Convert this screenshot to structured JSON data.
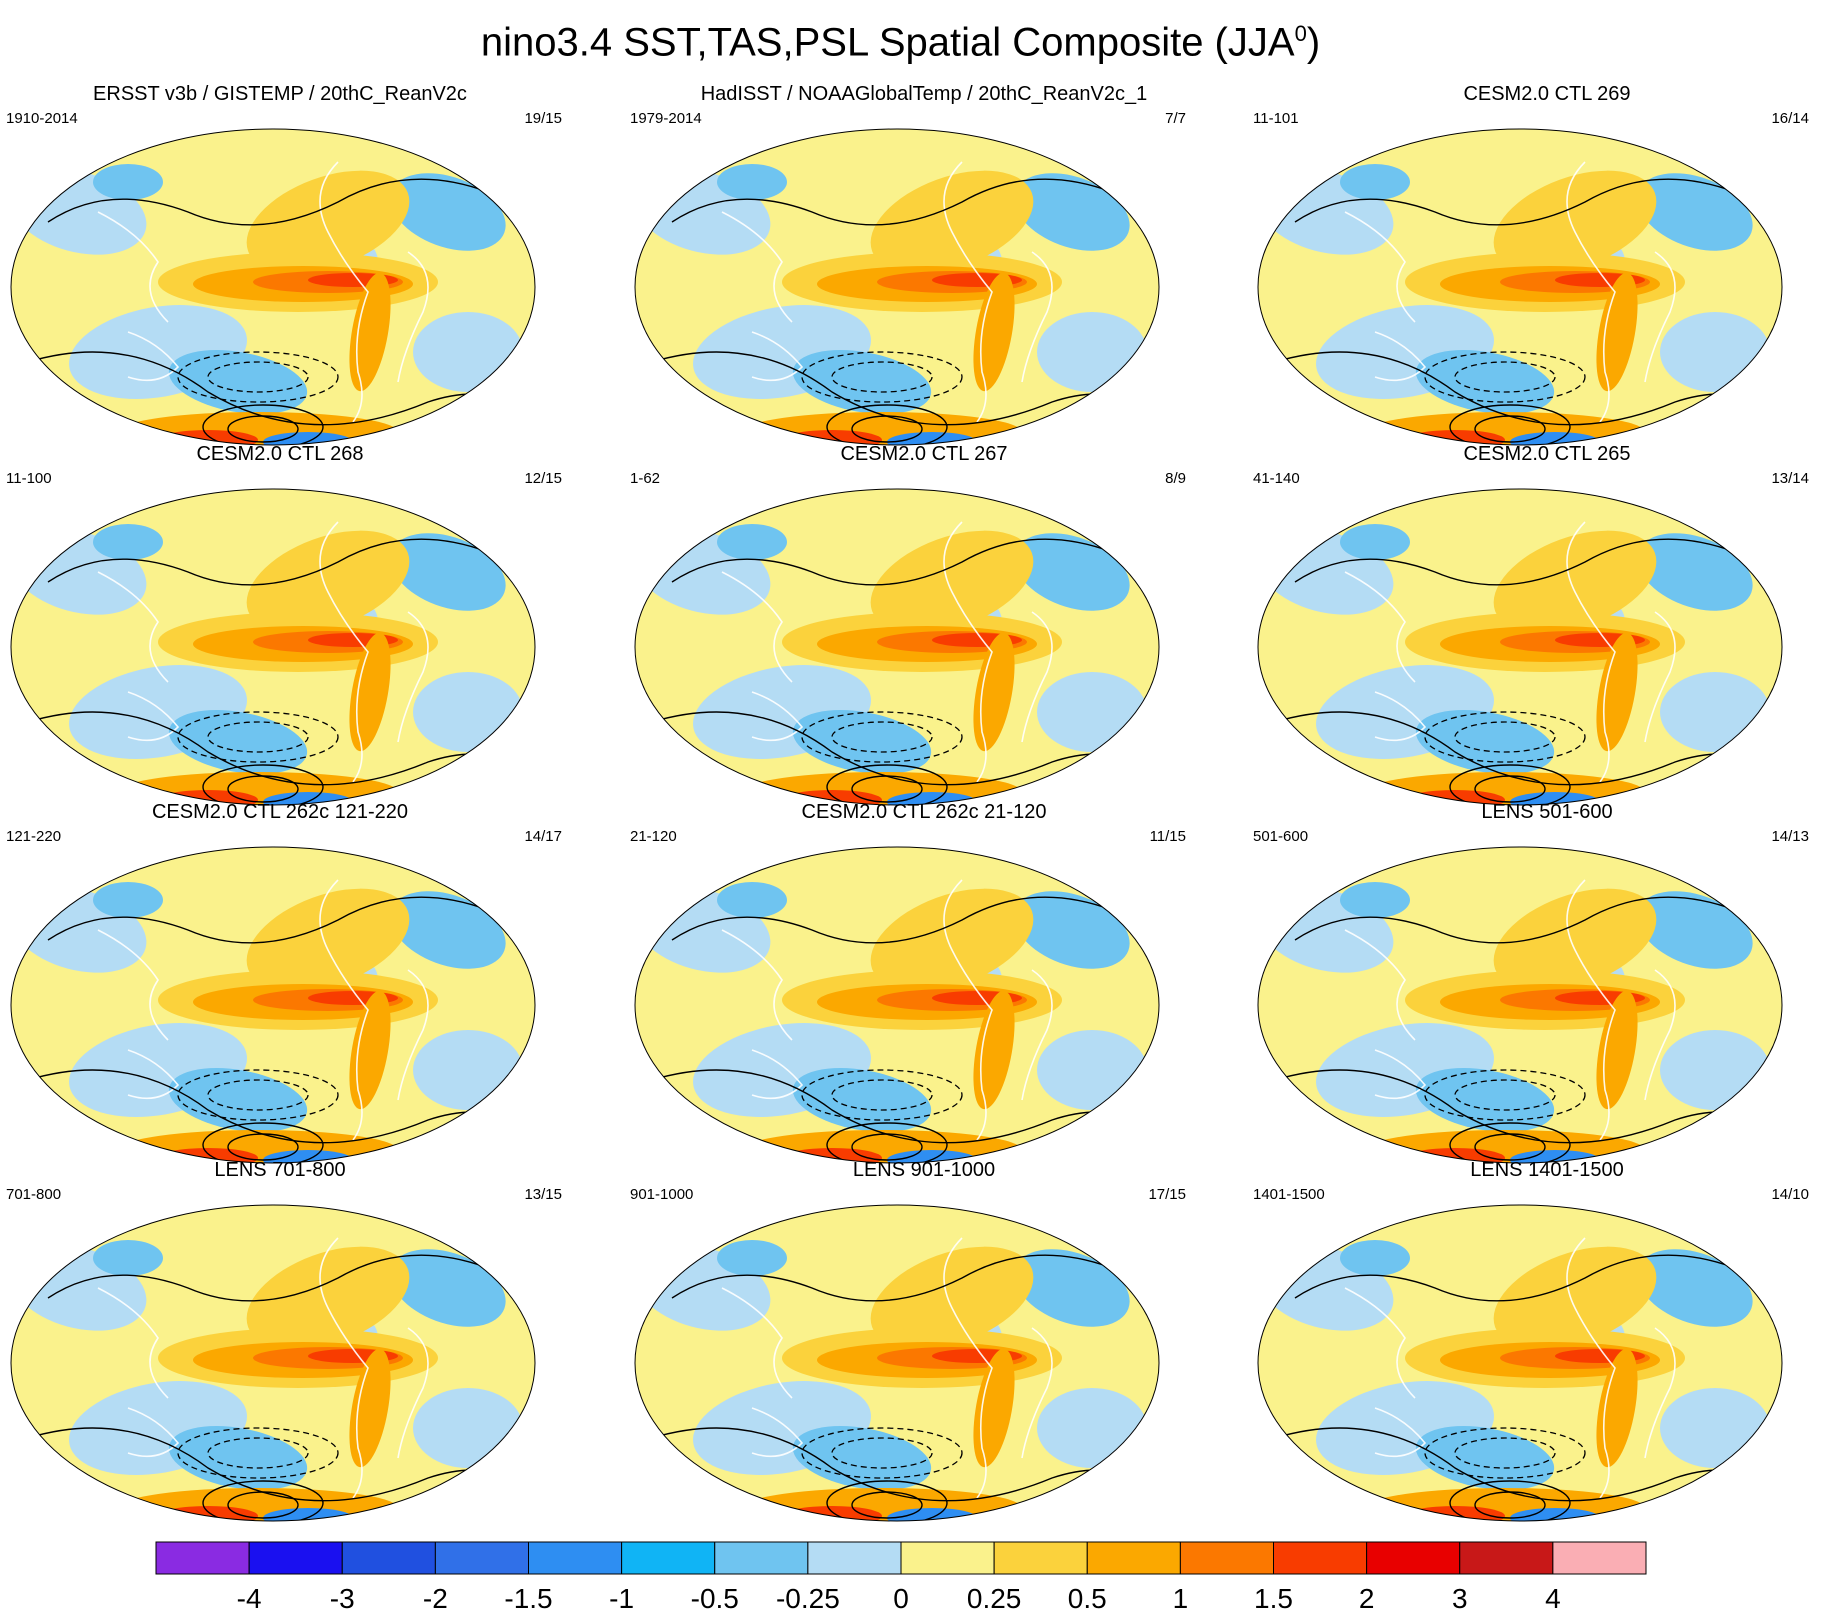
{
  "title": {
    "main": "nino3.4 SST,TAS,PSL Spatial Composite (JJA",
    "superscript": "0",
    "close": ")"
  },
  "chart_data": {
    "type": "map-composite-panels",
    "variables": [
      "SST",
      "TAS",
      "PSL"
    ],
    "index": "nino3.4",
    "season": "JJA0",
    "panels": [
      {
        "title": "ERSST v3b / GISTEMP / 20thC_ReanV2c",
        "years": "1910-2014",
        "count": "19/15"
      },
      {
        "title": "HadISST / NOAAGlobalTemp / 20thC_ReanV2c_1",
        "years": "1979-2014",
        "count": "7/7"
      },
      {
        "title": "CESM2.0 CTL 269",
        "years": "11-101",
        "count": "16/14"
      },
      {
        "title": "CESM2.0 CTL 268",
        "years": "11-100",
        "count": "12/15"
      },
      {
        "title": "CESM2.0 CTL 267",
        "years": "1-62",
        "count": "8/9"
      },
      {
        "title": "CESM2.0 CTL 265",
        "years": "41-140",
        "count": "13/14"
      },
      {
        "title": "CESM2.0 CTL 262c 121-220",
        "years": "121-220",
        "count": "14/17"
      },
      {
        "title": "CESM2.0 CTL 262c 21-120",
        "years": "21-120",
        "count": "11/15"
      },
      {
        "title": "LENS 501-600",
        "years": "501-600",
        "count": "14/13"
      },
      {
        "title": "LENS 701-800",
        "years": "701-800",
        "count": "13/15"
      },
      {
        "title": "LENS 901-1000",
        "years": "901-1000",
        "count": "17/15"
      },
      {
        "title": "LENS 1401-1500",
        "years": "1401-1500",
        "count": "14/10"
      }
    ],
    "colorbar": {
      "levels": [
        "-4",
        "-3",
        "-2",
        "-1.5",
        "-1",
        "-0.5",
        "-0.25",
        "0",
        "0.25",
        "0.5",
        "1",
        "1.5",
        "2",
        "3",
        "4"
      ],
      "colors": [
        "#8a2be2",
        "#1a10f0",
        "#2050e0",
        "#3070e8",
        "#2e8ef2",
        "#10b4f5",
        "#6fc4f0",
        "#b4dcf4",
        "#faf28c",
        "#fbd23c",
        "#fba800",
        "#fb7800",
        "#f83c00",
        "#e80000",
        "#c81818",
        "#faaeb4"
      ]
    }
  }
}
